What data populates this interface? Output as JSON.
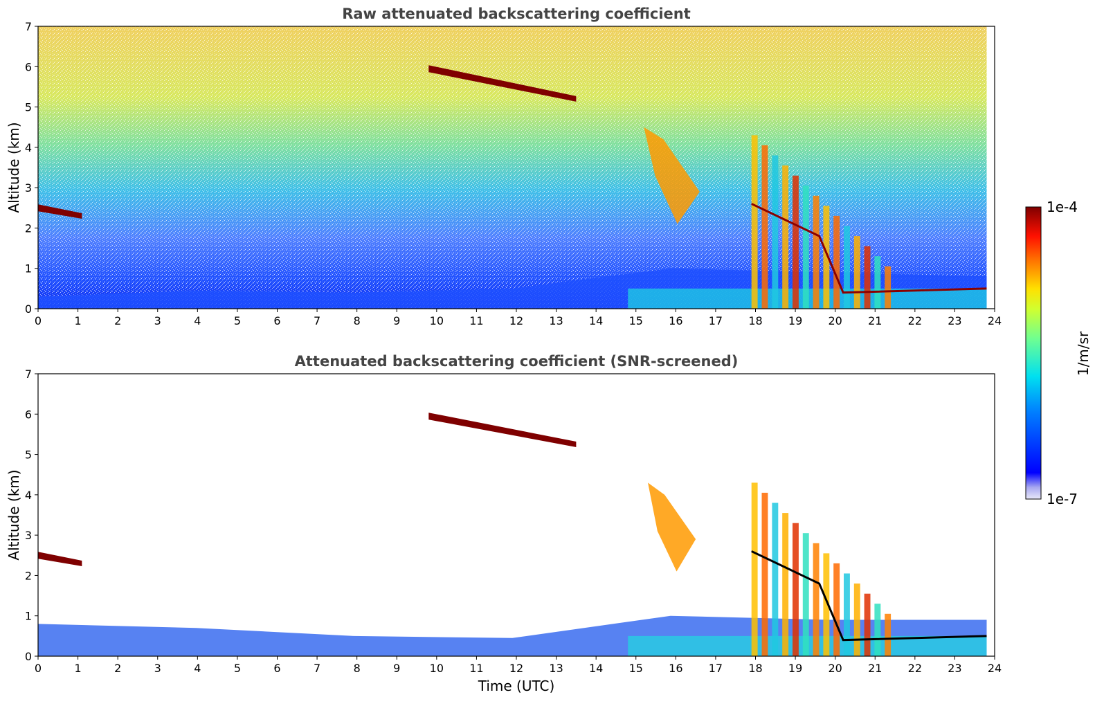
{
  "figure": {
    "colorbar": {
      "label": "1/m/sr",
      "max_label": "1e-4",
      "min_label": "1e-7",
      "scale": "log",
      "colormap": "jet",
      "min_color": "#e6e6f8",
      "max_color": "#7f0000"
    }
  },
  "chart_data": [
    {
      "type": "heatmap",
      "title": "Raw attenuated backscattering coefficient",
      "xlabel": "",
      "ylabel": "Altitude (km)",
      "xlim": [
        0,
        24
      ],
      "ylim": [
        0,
        7
      ],
      "x_ticks": [
        "0",
        "1",
        "2",
        "3",
        "4",
        "5",
        "6",
        "7",
        "8",
        "9",
        "10",
        "11",
        "12",
        "13",
        "14",
        "15",
        "16",
        "17",
        "18",
        "19",
        "20",
        "21",
        "22",
        "23",
        "24"
      ],
      "y_ticks": [
        "0",
        "1",
        "2",
        "3",
        "4",
        "5",
        "6",
        "7"
      ],
      "features": [
        {
          "kind": "surface_layer",
          "x": [
            0,
            23.8
          ],
          "top_altitude": [
            0.3,
            0.45,
            0.4,
            0.5,
            1.0,
            0.9,
            0.8
          ]
        },
        {
          "kind": "cloud_layer",
          "x": [
            0,
            1.1
          ],
          "altitude": [
            2.5,
            2.3
          ],
          "intensity": "1e-4"
        },
        {
          "kind": "cloud_layer",
          "x": [
            9.8,
            13.5
          ],
          "altitude": [
            5.95,
            5.2
          ],
          "intensity": "1e-4"
        },
        {
          "kind": "virga",
          "x": [
            15.2,
            16.6
          ],
          "altitude": [
            4.5,
            2.1
          ]
        },
        {
          "kind": "precipitation",
          "x": [
            17.9,
            21.5
          ],
          "altitude": [
            4.3,
            0
          ]
        }
      ]
    },
    {
      "type": "heatmap",
      "title": "Attenuated backscattering coefficient (SNR-screened)",
      "xlabel": "Time (UTC)",
      "ylabel": "Altitude (km)",
      "xlim": [
        0,
        24
      ],
      "ylim": [
        0,
        7
      ],
      "x_ticks": [
        "0",
        "1",
        "2",
        "3",
        "4",
        "5",
        "6",
        "7",
        "8",
        "9",
        "10",
        "11",
        "12",
        "13",
        "14",
        "15",
        "16",
        "17",
        "18",
        "19",
        "20",
        "21",
        "22",
        "23",
        "24"
      ],
      "y_ticks": [
        "0",
        "1",
        "2",
        "3",
        "4",
        "5",
        "6",
        "7"
      ],
      "features": [
        {
          "kind": "surface_layer",
          "x": [
            0,
            23.8
          ],
          "top_altitude": [
            0.8,
            0.7,
            0.5,
            0.45,
            1.0,
            0.9,
            0.9
          ]
        },
        {
          "kind": "cloud_layer",
          "x": [
            0,
            1.1
          ],
          "altitude": [
            2.5,
            2.3
          ],
          "intensity": "1e-4"
        },
        {
          "kind": "cloud_layer",
          "x": [
            9.8,
            13.5
          ],
          "altitude": [
            5.95,
            5.25
          ],
          "intensity": "1e-4"
        },
        {
          "kind": "virga",
          "x": [
            15.3,
            16.5
          ],
          "altitude": [
            4.3,
            2.1
          ]
        },
        {
          "kind": "precipitation",
          "x": [
            17.9,
            21.5
          ],
          "altitude": [
            4.3,
            0
          ]
        }
      ]
    }
  ]
}
